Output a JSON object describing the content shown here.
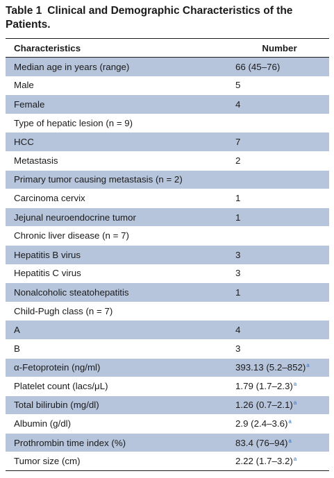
{
  "caption": {
    "label": "Table 1",
    "title": "Clinical and Demographic Characteristics of the Patients."
  },
  "header": {
    "col1": "Characteristics",
    "col2": "Number"
  },
  "rows": [
    {
      "label": "Median age in years (range)",
      "value": "66 (45–76)",
      "note": "",
      "shaded": true
    },
    {
      "label": "Male",
      "value": "5",
      "note": "",
      "shaded": false
    },
    {
      "label": "Female",
      "value": "4",
      "note": "",
      "shaded": true
    },
    {
      "label": "Type of hepatic lesion (n = 9)",
      "value": "",
      "note": "",
      "shaded": false
    },
    {
      "label": "HCC",
      "value": "7",
      "note": "",
      "shaded": true
    },
    {
      "label": "Metastasis",
      "value": "2",
      "note": "",
      "shaded": false
    },
    {
      "label": "Primary tumor causing metastasis (n = 2)",
      "value": "",
      "note": "",
      "shaded": true
    },
    {
      "label": "Carcinoma cervix",
      "value": "1",
      "note": "",
      "shaded": false
    },
    {
      "label": "Jejunal neuroendocrine tumor",
      "value": "1",
      "note": "",
      "shaded": true
    },
    {
      "label": "Chronic liver disease (n = 7)",
      "value": "",
      "note": "",
      "shaded": false
    },
    {
      "label": "Hepatitis B virus",
      "value": "3",
      "note": "",
      "shaded": true
    },
    {
      "label": "Hepatitis C virus",
      "value": "3",
      "note": "",
      "shaded": false
    },
    {
      "label": "Nonalcoholic steatohepatitis",
      "value": "1",
      "note": "",
      "shaded": true
    },
    {
      "label": "Child-Pugh class (n = 7)",
      "value": "",
      "note": "",
      "shaded": false
    },
    {
      "label": "A",
      "value": "4",
      "note": "",
      "shaded": true
    },
    {
      "label": "B",
      "value": "3",
      "note": "",
      "shaded": false
    },
    {
      "label": "α-Fetoprotein (ng/ml)",
      "value": "393.13 (5.2–852)",
      "note": "a",
      "shaded": true
    },
    {
      "label": "Platelet count (lacs/μL)",
      "value": "1.79 (1.7–2.3)",
      "note": "a",
      "shaded": false
    },
    {
      "label": "Total bilirubin (mg/dl)",
      "value": "1.26 (0.7–2.1)",
      "note": "a",
      "shaded": true
    },
    {
      "label": "Albumin (g/dl)",
      "value": "2.9 (2.4–3.6)",
      "note": "a",
      "shaded": false
    },
    {
      "label": "Prothrombin time index (%)",
      "value": "83.4 (76–94)",
      "note": "a",
      "shaded": true
    },
    {
      "label": "Tumor size (cm)",
      "value": "2.22 (1.7–3.2)",
      "note": "a",
      "shaded": false
    }
  ]
}
